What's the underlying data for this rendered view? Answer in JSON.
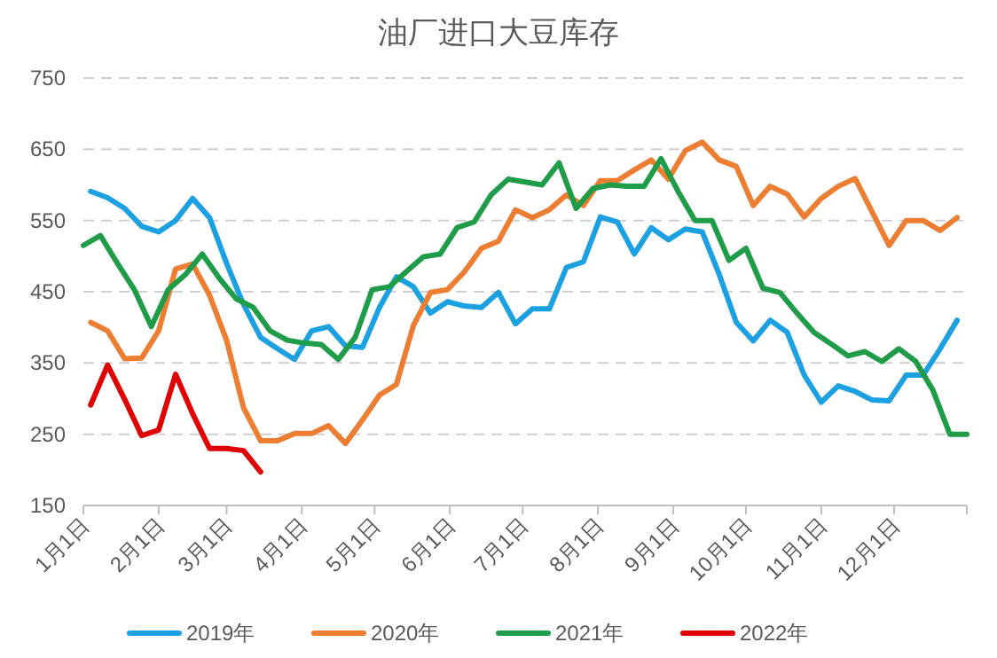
{
  "chart_data": {
    "type": "line",
    "title": "油厂进口大豆库存",
    "xlim": [
      "--01-01",
      "--12-31"
    ],
    "xticks": [
      {
        "value": "--01-01",
        "label": "1月1日"
      },
      {
        "value": "--02-01",
        "label": "2月1日"
      },
      {
        "value": "--03-01",
        "label": "3月1日"
      },
      {
        "value": "--04-01",
        "label": "4月1日"
      },
      {
        "value": "--05-01",
        "label": "5月1日"
      },
      {
        "value": "--06-01",
        "label": "6月1日"
      },
      {
        "value": "--07-01",
        "label": "7月1日"
      },
      {
        "value": "--08-01",
        "label": "8月1日"
      },
      {
        "value": "--09-01",
        "label": "9月1日"
      },
      {
        "value": "--10-01",
        "label": "10月1日"
      },
      {
        "value": "--11-01",
        "label": "11月1日"
      },
      {
        "value": "--12-01",
        "label": "12月1日"
      }
    ],
    "ylim": [
      150,
      750
    ],
    "yticks": [
      150,
      250,
      350,
      450,
      550,
      650,
      750
    ],
    "grid": "y",
    "legend": "bottom",
    "marker": "none",
    "line_style": "solid",
    "series": [
      {
        "name": "2019年",
        "color": "#1ba1e2",
        "x": [
          "--01-04",
          "--01-11",
          "--01-18",
          "--01-25",
          "--02-01",
          "--02-08",
          "--02-15",
          "--02-22",
          "--03-01",
          "--03-08",
          "--03-15",
          "--03-22",
          "--03-29",
          "--04-05",
          "--04-12",
          "--04-19",
          "--04-26",
          "--05-03",
          "--05-10",
          "--05-17",
          "--05-24",
          "--05-31",
          "--06-07",
          "--06-14",
          "--06-21",
          "--06-28",
          "--07-05",
          "--07-12",
          "--07-19",
          "--07-26",
          "--08-02",
          "--08-09",
          "--08-16",
          "--08-23",
          "--08-30",
          "--09-06",
          "--09-13",
          "--09-20",
          "--09-27",
          "--10-04",
          "--10-11",
          "--10-18",
          "--10-25",
          "--11-01",
          "--11-08",
          "--11-15",
          "--11-22",
          "--11-29",
          "--12-06",
          "--12-13",
          "--12-20",
          "--12-27"
        ],
        "values": [
          591,
          582,
          567,
          542,
          534,
          550,
          581,
          554,
          490,
          432,
          386,
          370,
          355,
          395,
          401,
          374,
          372,
          428,
          471,
          457,
          420,
          436,
          430,
          428,
          449,
          405,
          426,
          426,
          484,
          492,
          555,
          548,
          503,
          540,
          523,
          538,
          534,
          474,
          407,
          381,
          410,
          393,
          333,
          295,
          318,
          310,
          298,
          297,
          333,
          333,
          370,
          410
        ]
      },
      {
        "name": "2020年",
        "color": "#ed7d31",
        "x": [
          "--01-04",
          "--01-11",
          "--01-18",
          "--01-25",
          "--02-01",
          "--02-08",
          "--02-15",
          "--02-22",
          "--03-01",
          "--03-08",
          "--03-15",
          "--03-22",
          "--03-29",
          "--04-05",
          "--04-12",
          "--04-19",
          "--04-26",
          "--05-03",
          "--05-10",
          "--05-17",
          "--05-24",
          "--05-31",
          "--06-07",
          "--06-14",
          "--06-21",
          "--06-28",
          "--07-05",
          "--07-12",
          "--07-19",
          "--07-26",
          "--08-02",
          "--08-09",
          "--08-16",
          "--08-23",
          "--08-30",
          "--09-06",
          "--09-13",
          "--09-20",
          "--09-27",
          "--10-04",
          "--10-11",
          "--10-18",
          "--10-25",
          "--11-01",
          "--11-08",
          "--11-15",
          "--11-22",
          "--11-29",
          "--12-06",
          "--12-13",
          "--12-20",
          "--12-27"
        ],
        "values": [
          407,
          395,
          356,
          357,
          395,
          482,
          489,
          445,
          382,
          287,
          241,
          241,
          251,
          251,
          262,
          237,
          270,
          305,
          320,
          403,
          449,
          453,
          478,
          511,
          521,
          565,
          554,
          565,
          586,
          571,
          606,
          606,
          621,
          635,
          608,
          648,
          660,
          635,
          626,
          571,
          598,
          587,
          555,
          581,
          598,
          609,
          562,
          515,
          550,
          550,
          536,
          554
        ]
      },
      {
        "name": "2021年",
        "color": "#1e9c48",
        "x": [
          "--01-01",
          "--01-08",
          "--01-15",
          "--01-22",
          "--01-29",
          "--02-05",
          "--02-12",
          "--02-19",
          "--02-26",
          "--03-05",
          "--03-12",
          "--03-19",
          "--03-26",
          "--04-02",
          "--04-09",
          "--04-16",
          "--04-23",
          "--04-30",
          "--05-07",
          "--05-14",
          "--05-21",
          "--05-28",
          "--06-04",
          "--06-11",
          "--06-18",
          "--06-25",
          "--07-02",
          "--07-09",
          "--07-16",
          "--07-23",
          "--07-30",
          "--08-06",
          "--08-13",
          "--08-20",
          "--08-27",
          "--09-03",
          "--09-10",
          "--09-17",
          "--09-24",
          "--10-01",
          "--10-08",
          "--10-15",
          "--10-22",
          "--10-29",
          "--11-05",
          "--11-12",
          "--11-19",
          "--11-26",
          "--12-03",
          "--12-10",
          "--12-17",
          "--12-24",
          "--12-31"
        ],
        "values": [
          515,
          529,
          490,
          453,
          401,
          453,
          474,
          503,
          469,
          440,
          428,
          395,
          382,
          378,
          376,
          355,
          386,
          453,
          457,
          478,
          499,
          503,
          540,
          548,
          586,
          608,
          604,
          600,
          631,
          567,
          595,
          600,
          598,
          598,
          637,
          591,
          550,
          550,
          494,
          511,
          455,
          449,
          420,
          393,
          377,
          360,
          366,
          352,
          370,
          352,
          312,
          250,
          250
        ]
      },
      {
        "name": "2022年",
        "color": "#e00000",
        "x": [
          "--01-04",
          "--01-11",
          "--01-18",
          "--01-25",
          "--02-01",
          "--02-08",
          "--02-15",
          "--02-22",
          "--03-01",
          "--03-08",
          "--03-15"
        ],
        "values": [
          291,
          347,
          299,
          248,
          256,
          334,
          279,
          230,
          230,
          227,
          197
        ]
      }
    ]
  }
}
